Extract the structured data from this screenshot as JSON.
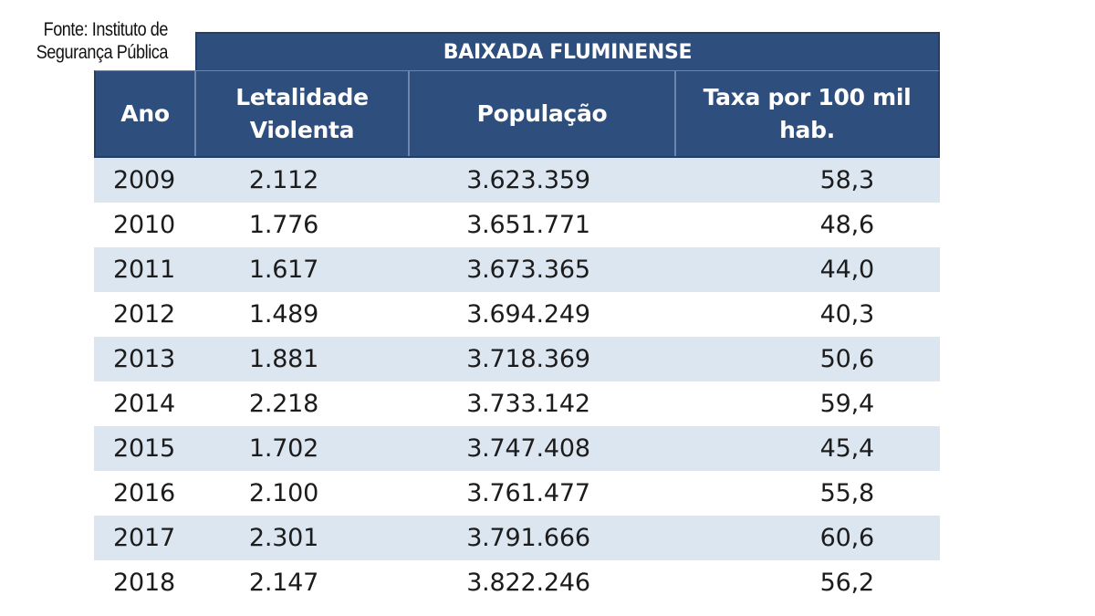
{
  "source": {
    "line1": "Fonte: Instituto de",
    "line2": "Segurança Pública"
  },
  "table": {
    "group_header": "BAIXADA FLUMINENSE",
    "columns": [
      "Ano",
      "Letalidade\nViolenta",
      "População",
      "Taxa por 100 mil\nhab."
    ],
    "column_lines": [
      [
        "Ano"
      ],
      [
        "Letalidade",
        "Violenta"
      ],
      [
        "População"
      ],
      [
        "Taxa por 100 mil",
        "hab."
      ]
    ],
    "rows": [
      [
        "2009",
        "2.112",
        "3.623.359",
        "58,3"
      ],
      [
        "2010",
        "1.776",
        "3.651.771",
        "48,6"
      ],
      [
        "2011",
        "1.617",
        "3.673.365",
        "44,0"
      ],
      [
        "2012",
        "1.489",
        "3.694.249",
        "40,3"
      ],
      [
        "2013",
        "1.881",
        "3.718.369",
        "50,6"
      ],
      [
        "2014",
        "2.218",
        "3.733.142",
        "59,4"
      ],
      [
        "2015",
        "1.702",
        "3.747.408",
        "45,4"
      ],
      [
        "2016",
        "2.100",
        "3.761.477",
        "55,8"
      ],
      [
        "2017",
        "2.301",
        "3.791.666",
        "60,6"
      ],
      [
        "2018",
        "2.147",
        "3.822.246",
        "56,2"
      ]
    ]
  },
  "colors": {
    "header_bg": "#2e4f7d",
    "header_text": "#ffffff",
    "stripe_bg": "#dce6f1",
    "body_text": "#1c1c1c"
  },
  "chart_data": {
    "type": "table",
    "title": "BAIXADA FLUMINENSE",
    "columns": [
      "Ano",
      "Letalidade Violenta",
      "População",
      "Taxa por 100 mil hab."
    ],
    "rows": [
      [
        "2009",
        2112,
        3623359,
        58.3
      ],
      [
        "2010",
        1776,
        3651771,
        48.6
      ],
      [
        "2011",
        1617,
        3673365,
        44.0
      ],
      [
        "2012",
        1489,
        3694249,
        40.3
      ],
      [
        "2013",
        1881,
        3718369,
        50.6
      ],
      [
        "2014",
        2218,
        3733142,
        59.4
      ],
      [
        "2015",
        1702,
        3747408,
        45.4
      ],
      [
        "2016",
        2100,
        3761477,
        55.8
      ],
      [
        "2017",
        2301,
        3791666,
        60.6
      ],
      [
        "2018",
        2147,
        3822246,
        56.2
      ]
    ]
  }
}
